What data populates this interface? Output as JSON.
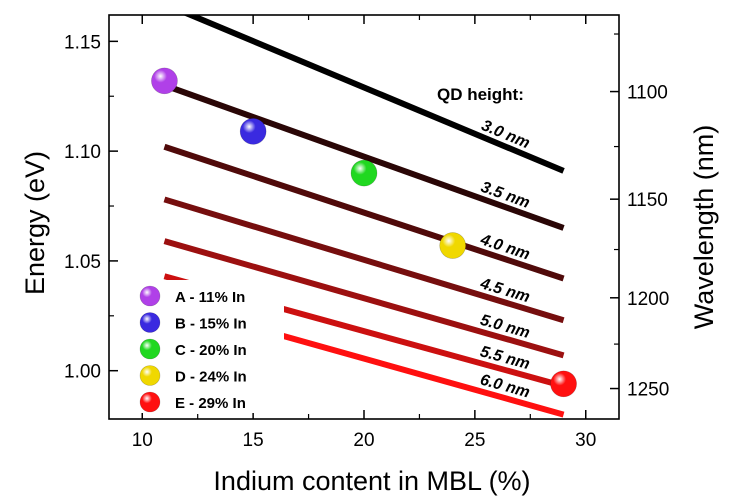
{
  "chart_data": {
    "type": "line",
    "xlabel": "Indium content in MBL (%)",
    "ylabel": "Energy (eV)",
    "y2label": "Wavelength (nm)",
    "xlim": [
      8.5,
      31.5
    ],
    "ylim": [
      0.978,
      1.162
    ],
    "xticks": [
      10,
      15,
      20,
      25,
      30
    ],
    "yticks": [
      1.0,
      1.05,
      1.1,
      1.15
    ],
    "ytick_labels": [
      "1.00",
      "1.05",
      "1.10",
      "1.15"
    ],
    "y2ticks": [
      1100,
      1150,
      1200,
      1250
    ],
    "grid": false,
    "annotation": "QD height:",
    "series": [
      {
        "name": "3.0 nm",
        "x": [
          11,
          29
        ],
        "y": [
          1.167,
          1.091
        ],
        "color": "#000000"
      },
      {
        "name": "3.5 nm",
        "x": [
          11,
          29
        ],
        "y": [
          1.13,
          1.065
        ],
        "color": "#2a0606"
      },
      {
        "name": "4.0 nm",
        "x": [
          11,
          29
        ],
        "y": [
          1.102,
          1.042
        ],
        "color": "#500a0a"
      },
      {
        "name": "4.5 nm",
        "x": [
          11,
          29
        ],
        "y": [
          1.078,
          1.023
        ],
        "color": "#760e0e"
      },
      {
        "name": "5.0 nm",
        "x": [
          11,
          29
        ],
        "y": [
          1.059,
          1.007
        ],
        "color": "#9c1010"
      },
      {
        "name": "5.5 nm",
        "x": [
          11,
          29
        ],
        "y": [
          1.043,
          0.993
        ],
        "color": "#cc1010"
      },
      {
        "name": "6.0 nm",
        "x": [
          11,
          29
        ],
        "y": [
          1.031,
          0.98
        ],
        "color": "#ff1010"
      }
    ],
    "points": [
      {
        "label": "A - 11% In",
        "x": 11,
        "y": 1.132,
        "color": "#b040e8"
      },
      {
        "label": "B - 15% In",
        "x": 15,
        "y": 1.109,
        "color": "#3a2ae0"
      },
      {
        "label": "C - 20% In",
        "x": 20,
        "y": 1.09,
        "color": "#20d820"
      },
      {
        "label": "D - 24% In",
        "x": 24,
        "y": 1.057,
        "color": "#f0d800"
      },
      {
        "label": "E - 29% In",
        "x": 29,
        "y": 0.994,
        "color": "#ff1010"
      }
    ]
  }
}
